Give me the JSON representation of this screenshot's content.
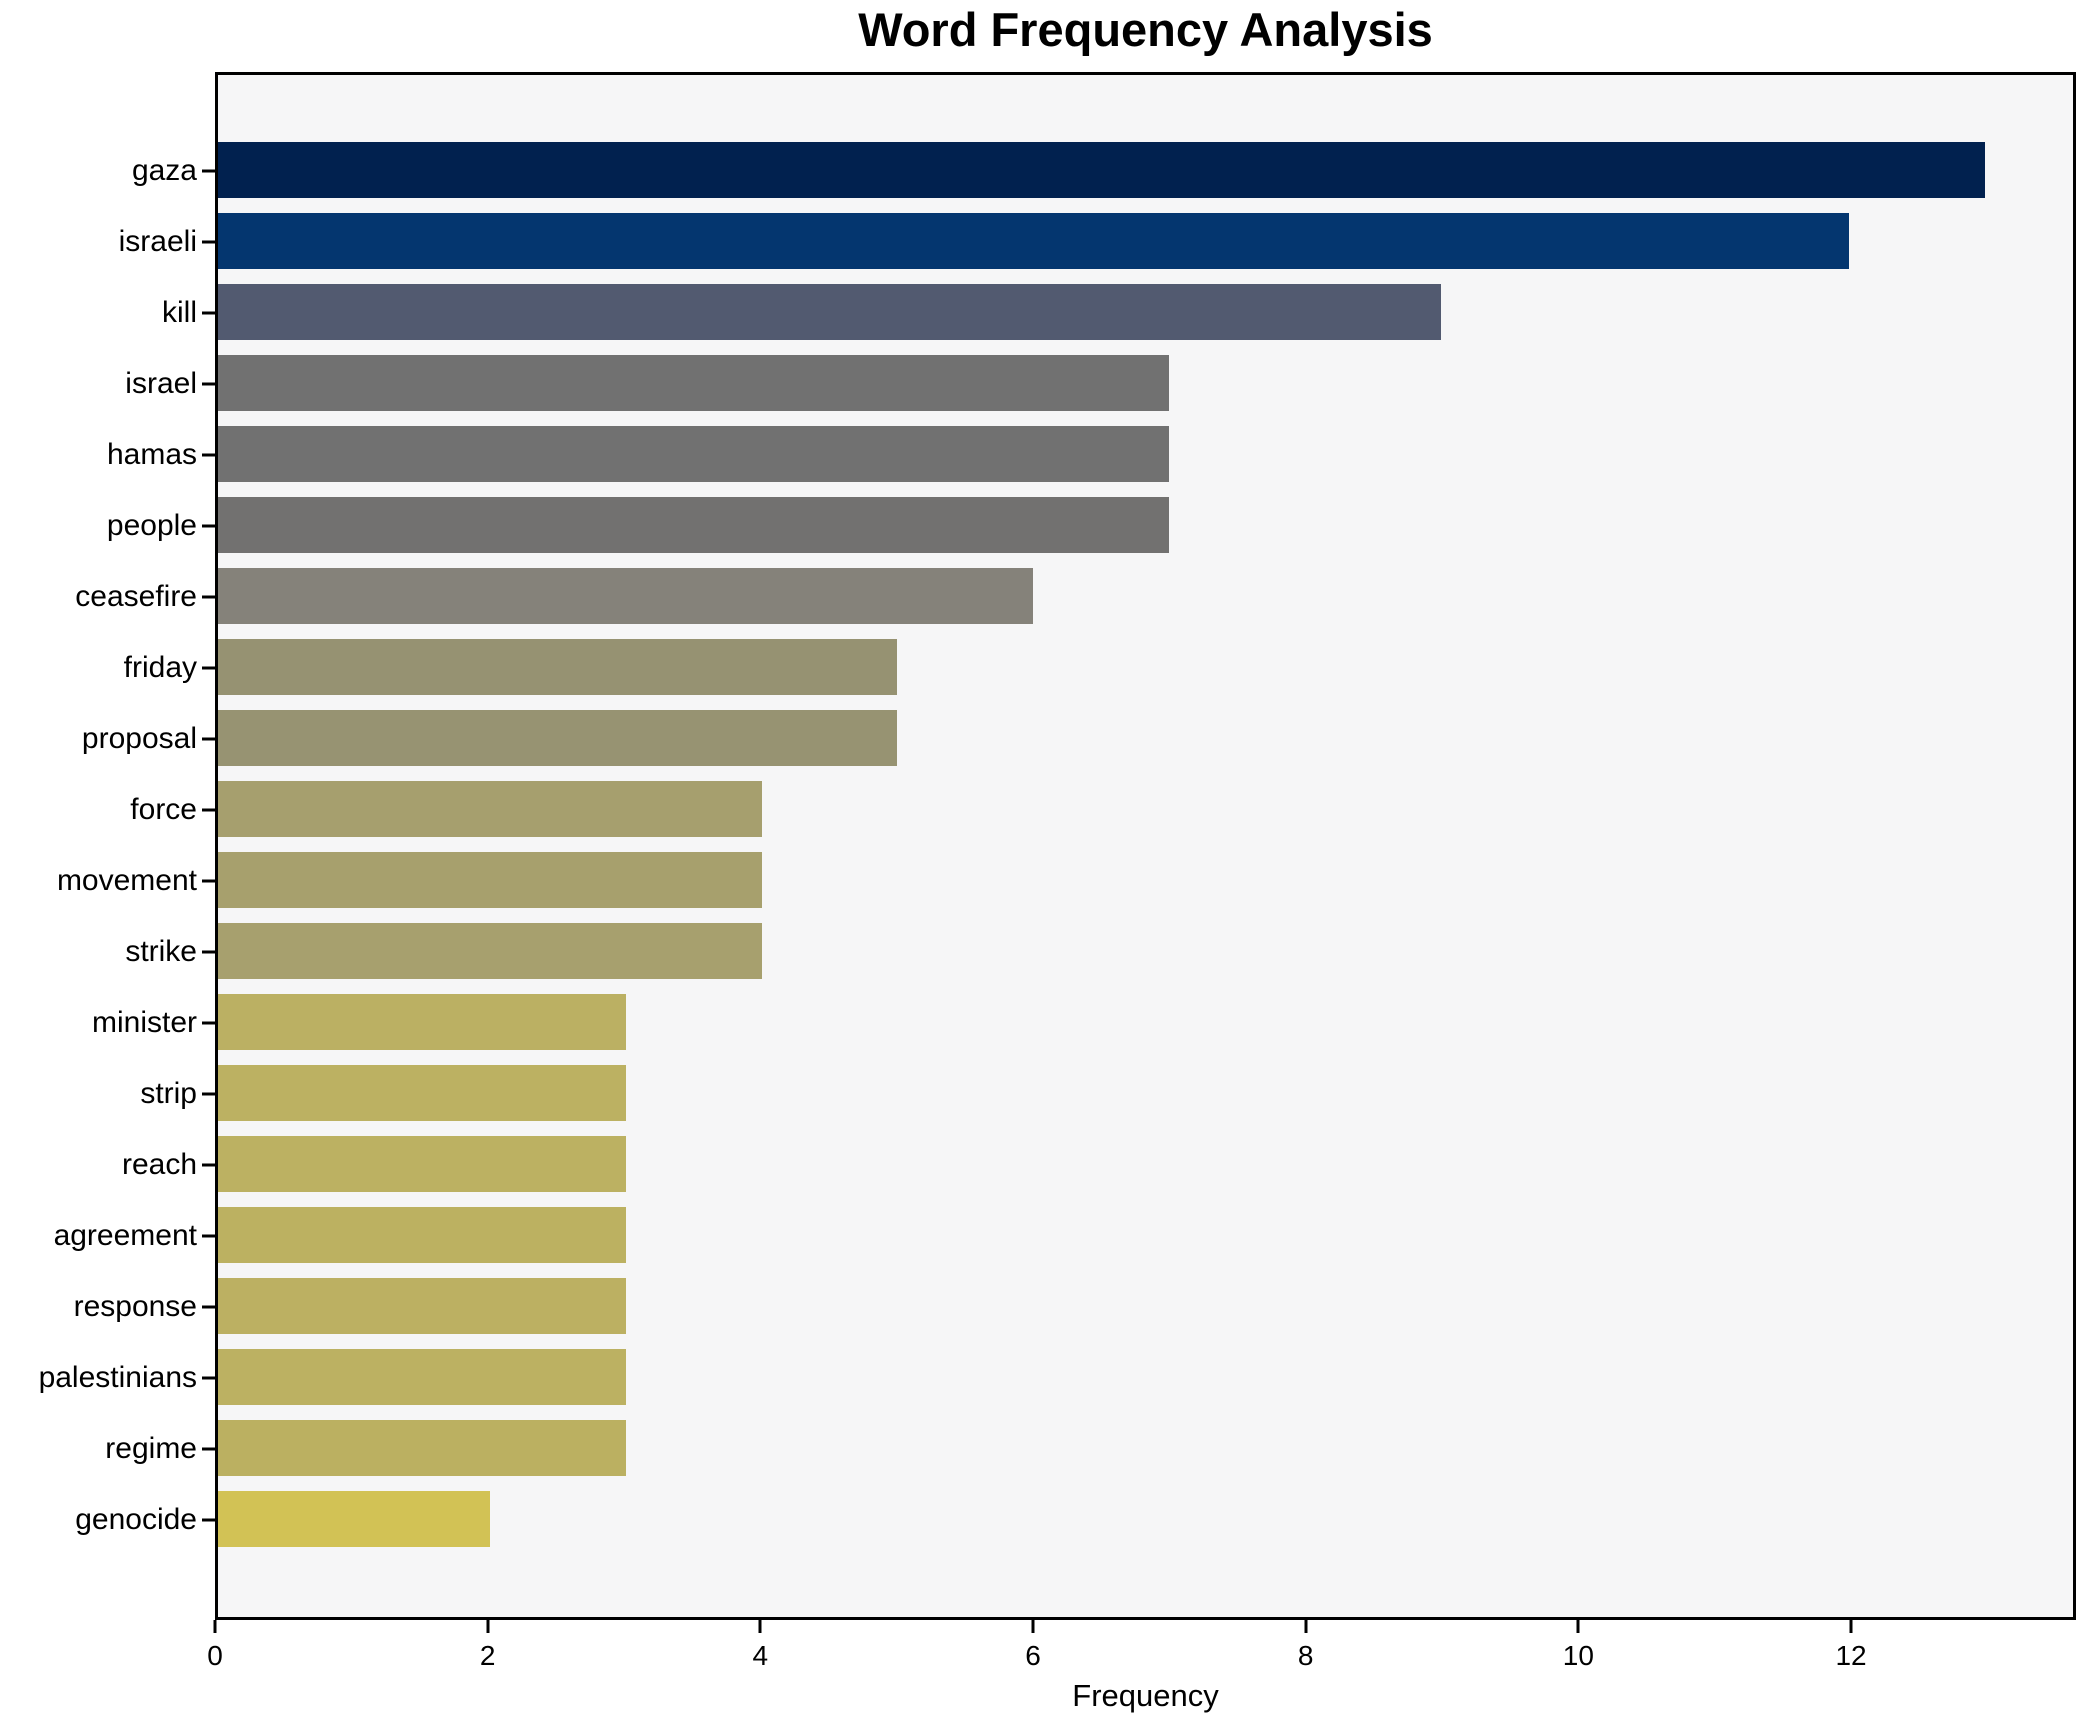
{
  "title": "Word Frequency Analysis",
  "chart_data": {
    "type": "bar",
    "orientation": "horizontal",
    "title": "Word Frequency Analysis",
    "xlabel": "Frequency",
    "ylabel": "",
    "xlim": [
      0,
      13.65
    ],
    "xticks": [
      0,
      2,
      4,
      6,
      8,
      10,
      12
    ],
    "grid": false,
    "legend": false,
    "categories": [
      "gaza",
      "israeli",
      "kill",
      "israel",
      "hamas",
      "people",
      "ceasefire",
      "friday",
      "proposal",
      "force",
      "movement",
      "strike",
      "minister",
      "strip",
      "reach",
      "agreement",
      "response",
      "palestinians",
      "regime",
      "genocide"
    ],
    "values": [
      13,
      12,
      9,
      7,
      7,
      7,
      6,
      5,
      5,
      4,
      4,
      4,
      3,
      3,
      3,
      3,
      3,
      3,
      3,
      2
    ],
    "bar_colors": [
      "#01214f",
      "#04366f",
      "#525a70",
      "#717171",
      "#717171",
      "#727170",
      "#85827a",
      "#969272",
      "#979372",
      "#a69f6e",
      "#a7a06d",
      "#a7a06e",
      "#bbb063",
      "#bcb162",
      "#bcb162",
      "#bcb161",
      "#bcb062",
      "#bcb162",
      "#bbb061",
      "#d2c255"
    ]
  },
  "colors": {
    "figure_background": "#ffffff",
    "plot_background": "#f6f6f7",
    "spine": "#000000",
    "text": "#000000"
  }
}
